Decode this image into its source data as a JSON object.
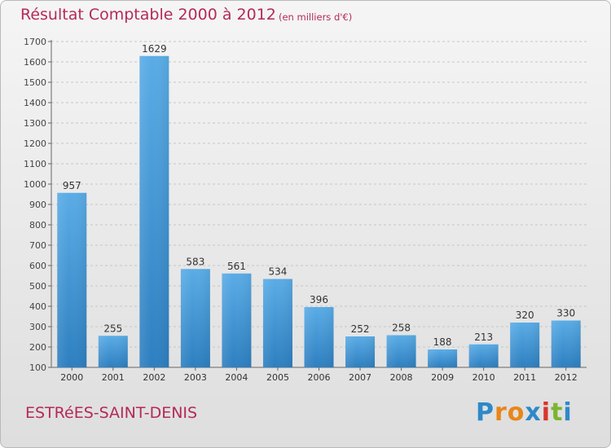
{
  "header": {
    "title": "Résultat Comptable 2000 à 2012",
    "subtitle": "(en milliers d'€)"
  },
  "footer": {
    "location": "ESTRéES-SAINT-DENIS",
    "brand_letters": [
      "P",
      "r",
      "o",
      "x",
      "i",
      "t",
      "i"
    ],
    "brand_colors": [
      "#2e89c8",
      "#e8861a",
      "#e8861a",
      "#2e89c8",
      "#d8342c",
      "#7cb531",
      "#2e89c8"
    ]
  },
  "chart_data": {
    "type": "bar",
    "title": "Résultat Comptable 2000 à 2012",
    "unit": "en milliers d'€",
    "categories": [
      "2000",
      "2001",
      "2002",
      "2003",
      "2004",
      "2005",
      "2006",
      "2007",
      "2008",
      "2009",
      "2010",
      "2011",
      "2012"
    ],
    "values": [
      957,
      255,
      1629,
      583,
      561,
      534,
      396,
      252,
      258,
      188,
      213,
      320,
      330
    ],
    "ylim": [
      100,
      1700
    ],
    "ytick_step": 100,
    "grid": true,
    "xlabel": "",
    "ylabel": "",
    "bar_color_top": "#5aace6",
    "bar_color_bottom": "#2d7fc0"
  }
}
